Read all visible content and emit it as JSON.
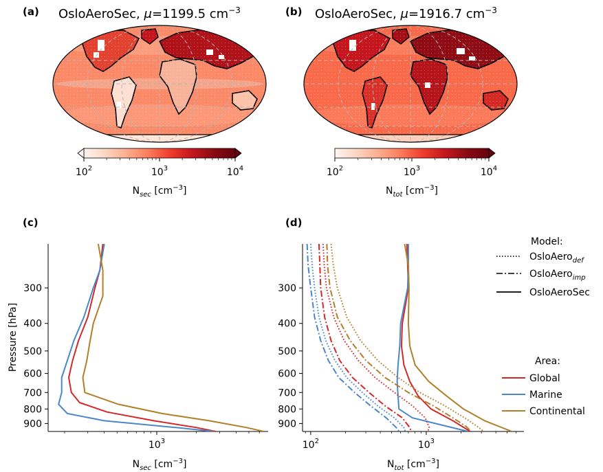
{
  "colors": {
    "global": "#d62728",
    "marine": "#4a86c8",
    "continental": "#b07f28",
    "cmap": [
      "#fff5f0",
      "#fdd5c3",
      "#fcac8e",
      "#fb7b5b",
      "#ef3c2c",
      "#c4161c",
      "#8a0b11",
      "#67000d"
    ],
    "land_fill": "#ffffff",
    "coast": "#000000",
    "grid": "#b4b4b4"
  },
  "chart_data": [
    {
      "panel": "(a)",
      "type": "heatmap",
      "title_prefix": "OsloAeroSec, ",
      "title_mu": "μ",
      "title_value": "=1199.5 cm",
      "title_exp": "−3",
      "colorbar": {
        "label_main": "N",
        "label_sub": "sec",
        "label_unit": " [cm",
        "label_exp": "−3",
        "label_close": "]",
        "ticks": [
          {
            "base": "10",
            "exp": "2"
          },
          {
            "base": "10",
            "exp": "3"
          },
          {
            "base": "10",
            "exp": "4"
          }
        ],
        "range": [
          100,
          10000
        ],
        "scale": "log",
        "extend": "both"
      }
    },
    {
      "panel": "(b)",
      "type": "heatmap",
      "title_prefix": "OsloAeroSec, ",
      "title_mu": "μ",
      "title_value": "=1916.7 cm",
      "title_exp": "−3",
      "colorbar": {
        "label_main": "N",
        "label_sub": "tot",
        "label_unit": " [cm",
        "label_exp": "−3",
        "label_close": "]",
        "ticks": [
          {
            "base": "10",
            "exp": "2"
          },
          {
            "base": "10",
            "exp": "3"
          },
          {
            "base": "10",
            "exp": "4"
          }
        ],
        "range": [
          100,
          10000
        ],
        "scale": "log",
        "extend": "max"
      }
    },
    {
      "panel": "(c)",
      "type": "line",
      "xscale": "log",
      "xlim": [
        150,
        7000
      ],
      "yscale": "log",
      "yinverted": true,
      "ylim": [
        960,
        210
      ],
      "ylabel": "Pressure [hPa]",
      "xlabel_main": "N",
      "xlabel_sub": "sec",
      "xlabel_unit": " [cm",
      "xlabel_exp": "−3",
      "xlabel_close": "]",
      "xticks": [
        {
          "base": "10",
          "exp": "3",
          "value": 1000
        }
      ],
      "yticks": [
        300,
        400,
        500,
        600,
        700,
        800,
        900
      ],
      "series": [
        {
          "key": "global",
          "style": "solid",
          "y": [
            210,
            260,
            300,
            380,
            460,
            540,
            620,
            700,
            760,
            820,
            880,
            930,
            960
          ],
          "x": [
            390,
            370,
            340,
            300,
            255,
            230,
            215,
            225,
            260,
            420,
            950,
            2000,
            2800
          ]
        },
        {
          "key": "marine",
          "style": "solid",
          "y": [
            210,
            260,
            300,
            380,
            460,
            540,
            620,
            700,
            770,
            830,
            880,
            930,
            960
          ],
          "x": [
            400,
            370,
            330,
            280,
            235,
            210,
            190,
            190,
            180,
            210,
            400,
            1400,
            2700
          ]
        },
        {
          "key": "continental",
          "style": "solid",
          "y": [
            210,
            260,
            320,
            400,
            470,
            540,
            620,
            700,
            770,
            830,
            880,
            930,
            960
          ],
          "x": [
            360,
            390,
            390,
            330,
            310,
            295,
            275,
            285,
            510,
            1100,
            2500,
            4800,
            6500
          ]
        }
      ]
    },
    {
      "panel": "(d)",
      "type": "line",
      "xscale": "log",
      "xlim": [
        85,
        7000
      ],
      "yscale": "log",
      "yinverted": true,
      "ylim": [
        960,
        210
      ],
      "xlabel_main": "N",
      "xlabel_sub": "tot",
      "xlabel_unit": " [cm",
      "xlabel_exp": "−3",
      "xlabel_close": "]",
      "xticks": [
        {
          "base": "10",
          "exp": "2",
          "value": 100
        },
        {
          "base": "10",
          "exp": "3",
          "value": 1000
        }
      ],
      "yticks": [
        300,
        400,
        500,
        600,
        700,
        800,
        900
      ],
      "series": [
        {
          "key": "global",
          "style": "solid",
          "y": [
            210,
            250,
            300,
            400,
            480,
            560,
            640,
            720,
            800,
            880,
            960
          ],
          "x": [
            680,
            690,
            700,
            620,
            610,
            640,
            720,
            850,
            1100,
            1700,
            2400
          ]
        },
        {
          "key": "marine",
          "style": "solid",
          "y": [
            210,
            250,
            300,
            400,
            480,
            560,
            640,
            720,
            800,
            860,
            920,
            960
          ],
          "x": [
            700,
            700,
            690,
            600,
            590,
            570,
            560,
            570,
            580,
            760,
            1500,
            2300
          ]
        },
        {
          "key": "continental",
          "style": "solid",
          "y": [
            210,
            250,
            300,
            400,
            480,
            560,
            640,
            720,
            800,
            880,
            960
          ],
          "x": [
            650,
            700,
            710,
            700,
            720,
            800,
            1050,
            1500,
            2100,
            3200,
            5500
          ]
        },
        {
          "key": "global",
          "style": "dashdot",
          "y": [
            210,
            250,
            300,
            380,
            460,
            540,
            620,
            700,
            780,
            860,
            930,
            960
          ],
          "x": [
            118,
            120,
            122,
            132,
            150,
            178,
            230,
            320,
            440,
            620,
            720,
            740
          ]
        },
        {
          "key": "marine",
          "style": "dashdot",
          "y": [
            210,
            250,
            300,
            380,
            460,
            540,
            620,
            700,
            780,
            860,
            930,
            960
          ],
          "x": [
            93,
            95,
            100,
            108,
            122,
            142,
            175,
            240,
            330,
            450,
            550,
            580
          ]
        },
        {
          "key": "continental",
          "style": "dashdot",
          "y": [
            210,
            250,
            300,
            380,
            460,
            540,
            620,
            700,
            780,
            860,
            920,
            960
          ],
          "x": [
            138,
            140,
            147,
            170,
            220,
            300,
            440,
            700,
            1150,
            1700,
            2200,
            2450
          ]
        },
        {
          "key": "global",
          "style": "dotted",
          "y": [
            210,
            250,
            300,
            380,
            460,
            540,
            620,
            700,
            780,
            860,
            930,
            960
          ],
          "x": [
            128,
            131,
            137,
            158,
            195,
            258,
            360,
            530,
            760,
            980,
            1060,
            1030
          ]
        },
        {
          "key": "marine",
          "style": "dotted",
          "y": [
            210,
            250,
            300,
            380,
            460,
            540,
            620,
            700,
            780,
            860,
            930,
            960
          ],
          "x": [
            100,
            103,
            108,
            118,
            135,
            162,
            205,
            280,
            380,
            530,
            640,
            660
          ]
        },
        {
          "key": "continental",
          "style": "dotted",
          "y": [
            210,
            250,
            300,
            380,
            460,
            540,
            620,
            700,
            780,
            860,
            920,
            960
          ],
          "x": [
            150,
            157,
            170,
            205,
            270,
            380,
            570,
            880,
            1450,
            2150,
            2750,
            3150
          ]
        }
      ],
      "legend_model": {
        "title": "Model:",
        "entries": [
          {
            "style": "dotted",
            "main": "OsloAero",
            "sub": "def"
          },
          {
            "style": "dashdot",
            "main": "OsloAero",
            "sub": "imp"
          },
          {
            "style": "solid",
            "main": "OsloAeroSec",
            "sub": ""
          }
        ]
      },
      "legend_area": {
        "title": "Area:",
        "entries": [
          {
            "key": "global",
            "label": "Global"
          },
          {
            "key": "marine",
            "label": "Marine"
          },
          {
            "key": "continental",
            "label": "Continental"
          }
        ]
      }
    }
  ],
  "panel_labels": {
    "c": "(c)",
    "d": "(d)"
  }
}
